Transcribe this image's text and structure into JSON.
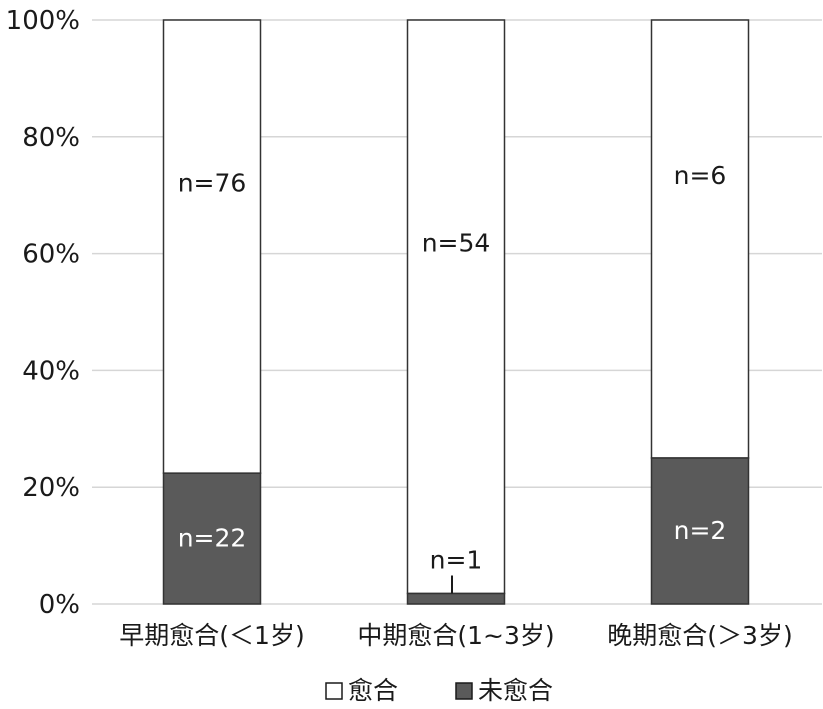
{
  "chart_data": {
    "type": "bar",
    "stacked": true,
    "categories": [
      "早期愈合(＜1岁)",
      "中期愈合(1~3岁)",
      "晚期愈合(＞3岁)"
    ],
    "series": [
      {
        "name": "未愈合",
        "color": "#5a5a5a",
        "values": [
          22.4,
          1.8,
          25.0
        ],
        "labels": [
          "n=22",
          "n=1",
          "n=2"
        ]
      },
      {
        "name": "愈合",
        "color": "#ffffff",
        "values": [
          77.6,
          98.2,
          75.0
        ],
        "labels": [
          "n=76",
          "n=54",
          "n=6"
        ]
      }
    ],
    "y_ticks": [
      "0%",
      "20%",
      "40%",
      "60%",
      "80%",
      "100%"
    ],
    "ylim": [
      0,
      100
    ],
    "title": "",
    "xlabel": "",
    "ylabel": "",
    "grid": true,
    "legend_position": "bottom-center",
    "legend": [
      "愈合",
      "未愈合"
    ]
  }
}
